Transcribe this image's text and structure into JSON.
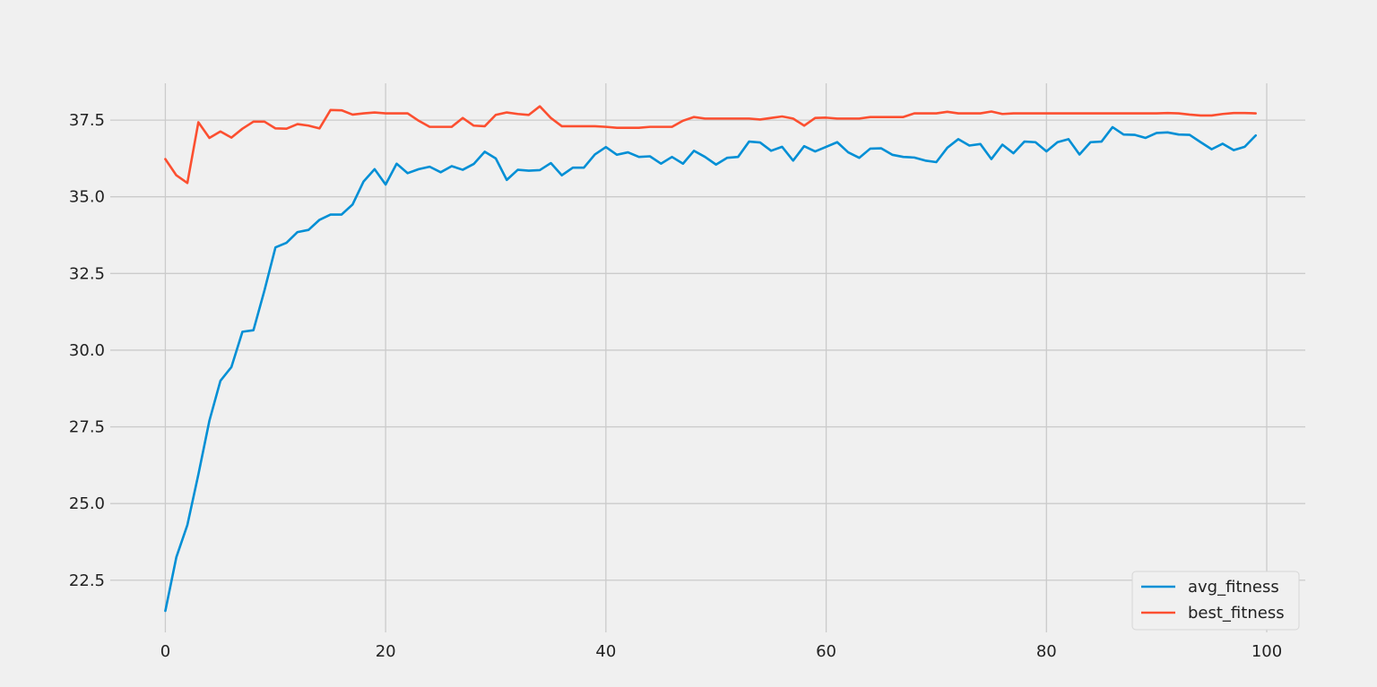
{
  "chart_data": {
    "type": "line",
    "title": "",
    "xlabel": "",
    "ylabel": "",
    "xlim": [
      -5,
      103.5
    ],
    "ylim": [
      20.8,
      38.7
    ],
    "x_ticks": [
      0,
      20,
      40,
      60,
      80,
      100
    ],
    "y_ticks": [
      22.5,
      25.0,
      27.5,
      30.0,
      32.5,
      35.0,
      37.5
    ],
    "grid": true,
    "legend_position": "bottom-right",
    "x": [
      0,
      1,
      2,
      3,
      4,
      5,
      6,
      7,
      8,
      9,
      10,
      11,
      12,
      13,
      14,
      15,
      16,
      17,
      18,
      19,
      20,
      21,
      22,
      23,
      24,
      25,
      26,
      27,
      28,
      29,
      30,
      31,
      32,
      33,
      34,
      35,
      36,
      37,
      38,
      39,
      40,
      41,
      42,
      43,
      44,
      45,
      46,
      47,
      48,
      49,
      50,
      51,
      52,
      53,
      54,
      55,
      56,
      57,
      58,
      59,
      60,
      61,
      62,
      63,
      64,
      65,
      66,
      67,
      68,
      69,
      70,
      71,
      72,
      73,
      74,
      75,
      76,
      77,
      78,
      79,
      80,
      81,
      82,
      83,
      84,
      85,
      86,
      87,
      88,
      89,
      90,
      91,
      92,
      93,
      94,
      95,
      96,
      97,
      98,
      99
    ],
    "series": [
      {
        "name": "avg_fitness",
        "color": "#008fd5",
        "values": [
          21.5,
          23.25,
          24.3,
          25.95,
          27.7,
          29.0,
          29.45,
          30.6,
          30.65,
          31.95,
          33.35,
          33.5,
          33.85,
          33.92,
          34.25,
          34.42,
          34.42,
          34.75,
          35.5,
          35.9,
          35.4,
          36.08,
          35.77,
          35.9,
          35.98,
          35.8,
          36.0,
          35.88,
          36.07,
          36.47,
          36.25,
          35.55,
          35.88,
          35.85,
          35.87,
          36.1,
          35.7,
          35.95,
          35.95,
          36.38,
          36.62,
          36.37,
          36.45,
          36.3,
          36.32,
          36.08,
          36.3,
          36.08,
          36.5,
          36.3,
          36.05,
          36.27,
          36.3,
          36.8,
          36.77,
          36.5,
          36.63,
          36.18,
          36.65,
          36.48,
          36.63,
          36.78,
          36.45,
          36.27,
          36.57,
          36.58,
          36.37,
          36.3,
          36.28,
          36.18,
          36.13,
          36.6,
          36.88,
          36.67,
          36.72,
          36.23,
          36.7,
          36.42,
          36.8,
          36.78,
          36.48,
          36.78,
          36.88,
          36.38,
          36.78,
          36.8,
          37.27,
          37.03,
          37.02,
          36.92,
          37.08,
          37.1,
          37.03,
          37.02,
          36.78,
          36.55,
          36.73,
          36.52,
          36.63,
          37.0
        ]
      },
      {
        "name": "best_fitness",
        "color": "#fc4f30",
        "values": [
          36.23,
          35.7,
          35.45,
          37.43,
          36.92,
          37.13,
          36.93,
          37.22,
          37.45,
          37.45,
          37.23,
          37.22,
          37.37,
          37.32,
          37.23,
          37.83,
          37.82,
          37.68,
          37.72,
          37.75,
          37.72,
          37.72,
          37.72,
          37.48,
          37.28,
          37.28,
          37.28,
          37.57,
          37.32,
          37.3,
          37.67,
          37.75,
          37.7,
          37.67,
          37.95,
          37.57,
          37.3,
          37.3,
          37.3,
          37.3,
          37.28,
          37.25,
          37.25,
          37.25,
          37.28,
          37.28,
          37.28,
          37.48,
          37.6,
          37.55,
          37.55,
          37.55,
          37.55,
          37.55,
          37.52,
          37.57,
          37.62,
          37.55,
          37.32,
          37.57,
          37.58,
          37.55,
          37.55,
          37.55,
          37.6,
          37.6,
          37.6,
          37.6,
          37.72,
          37.72,
          37.72,
          37.77,
          37.72,
          37.72,
          37.72,
          37.78,
          37.7,
          37.72,
          37.72,
          37.72,
          37.72,
          37.72,
          37.72,
          37.72,
          37.72,
          37.72,
          37.72,
          37.72,
          37.72,
          37.72,
          37.72,
          37.73,
          37.72,
          37.68,
          37.65,
          37.65,
          37.7,
          37.73,
          37.73,
          37.72
        ]
      }
    ]
  }
}
